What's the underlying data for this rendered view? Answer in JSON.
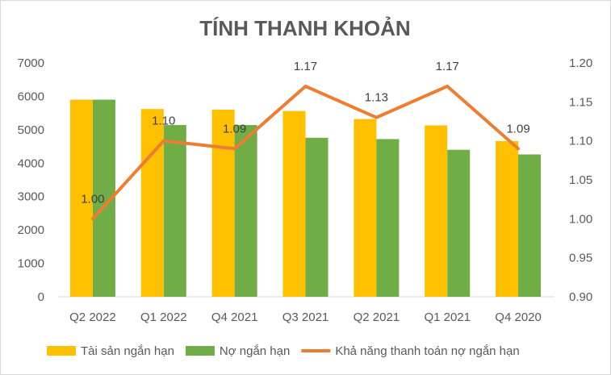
{
  "chart_data": {
    "type": "bar",
    "title": "TÍNH THANH KHOẢN",
    "categories": [
      "Q2 2022",
      "Q1 2022",
      "Q4 2021",
      "Q3 2021",
      "Q2 2021",
      "Q1 2021",
      "Q4 2020"
    ],
    "series": [
      {
        "name": "Tài sản ngắn hạn",
        "type": "bar",
        "axis": "left",
        "color": "#FFC000",
        "values": [
          5900,
          5620,
          5600,
          5560,
          5320,
          5130,
          4660
        ]
      },
      {
        "name": "Nợ ngắn hạn",
        "type": "bar",
        "axis": "left",
        "color": "#70AD47",
        "values": [
          5900,
          5140,
          5140,
          4760,
          4720,
          4400,
          4260
        ]
      },
      {
        "name": "Khả năng thanh toán nợ ngắn hạn",
        "type": "line",
        "axis": "right",
        "color": "#ED7D31",
        "values": [
          1.0,
          1.1,
          1.09,
          1.17,
          1.13,
          1.17,
          1.09
        ],
        "labels": [
          "1.00",
          "1.10",
          "1.09",
          "1.17",
          "1.13",
          "1.17",
          "1.09"
        ]
      }
    ],
    "y_left": {
      "min": 0,
      "max": 7000,
      "ticks": [
        "0",
        "1000",
        "2000",
        "3000",
        "4000",
        "5000",
        "6000",
        "7000"
      ]
    },
    "y_right": {
      "min": 0.9,
      "max": 1.2,
      "ticks": [
        "0.90",
        "0.95",
        "1.00",
        "1.05",
        "1.10",
        "1.15",
        "1.20"
      ]
    },
    "grid": false,
    "legend_position": "bottom"
  }
}
